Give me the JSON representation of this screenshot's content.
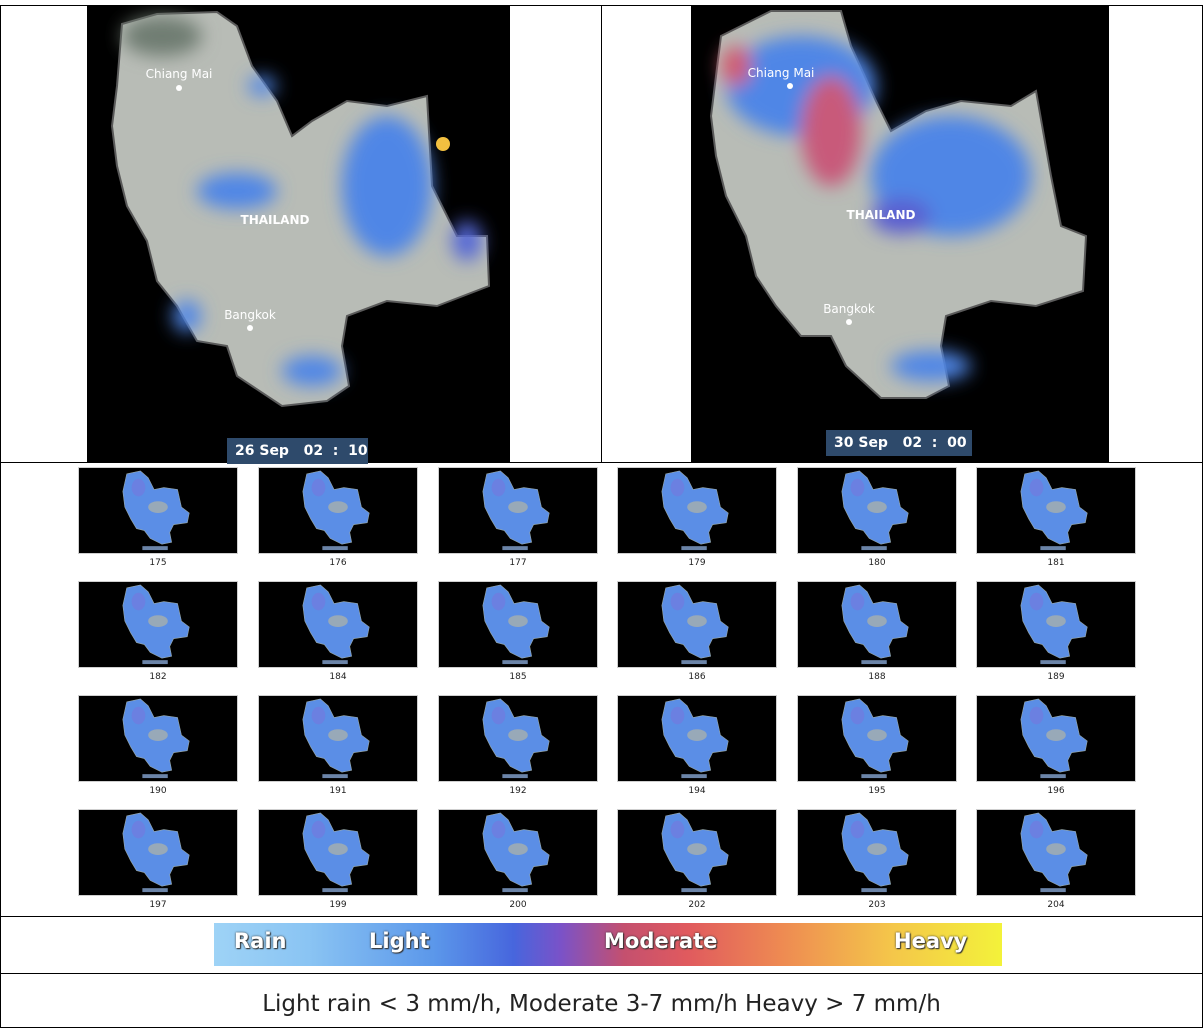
{
  "maps": [
    {
      "timestamp": "26 Sep   02  :  10",
      "labels": {
        "city_north": "Chiang Mai",
        "country": "THAILAND",
        "city_south": "Bangkok"
      }
    },
    {
      "timestamp": "30 Sep   02  :  00",
      "labels": {
        "city_north": "Chiang Mai",
        "country": "THAILAND",
        "city_south": "Bangkok"
      }
    }
  ],
  "frames": [
    "175",
    "176",
    "177",
    "179",
    "180",
    "181",
    "182",
    "184",
    "185",
    "186",
    "188",
    "189",
    "190",
    "191",
    "192",
    "194",
    "195",
    "196",
    "197",
    "199",
    "200",
    "202",
    "203",
    "204"
  ],
  "legend": {
    "labels": [
      "Rain",
      "Light",
      "Moderate",
      "Heavy"
    ],
    "colors": [
      "#9ed3f6",
      "#5b97ea",
      "#c4506f",
      "#f3f23a"
    ]
  },
  "caption": "Light rain < 3 mm/h, Moderate 3-7 mm/h Heavy > 7 mm/h"
}
